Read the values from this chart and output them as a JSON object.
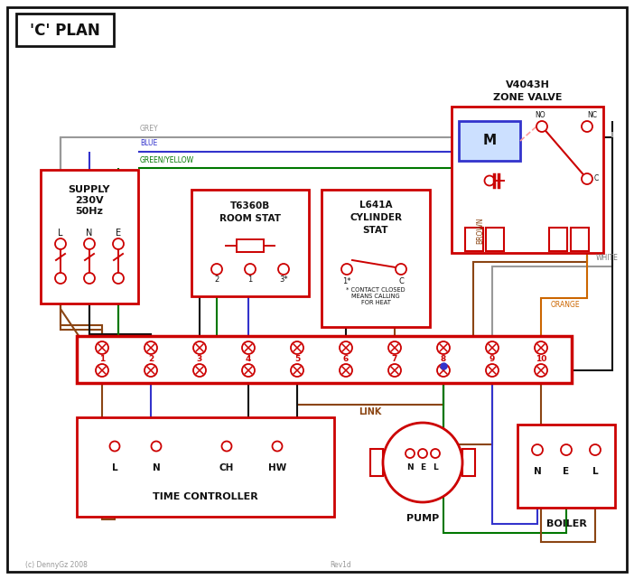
{
  "title": "'C' PLAN",
  "bg_color": "#ffffff",
  "red": "#cc0000",
  "blue": "#3333cc",
  "green": "#007700",
  "grey": "#999999",
  "brown": "#8B4513",
  "orange": "#cc6600",
  "black": "#111111",
  "pink": "#ff9999",
  "zone_valve_label1": "V4043H",
  "zone_valve_label2": "ZONE VALVE",
  "supply_label": "SUPPLY\n230V\n50Hz",
  "room_stat_label1": "T6360B",
  "room_stat_label2": "ROOM STAT",
  "cyl_stat_label1": "L641A",
  "cyl_stat_label2": "CYLINDER",
  "cyl_stat_label3": "STAT",
  "time_ctrl_label": "TIME CONTROLLER",
  "pump_label": "PUMP",
  "boiler_label": "BOILER",
  "link_label": "LINK",
  "copyright": "(c) DennyGz 2008",
  "rev": "Rev1d"
}
